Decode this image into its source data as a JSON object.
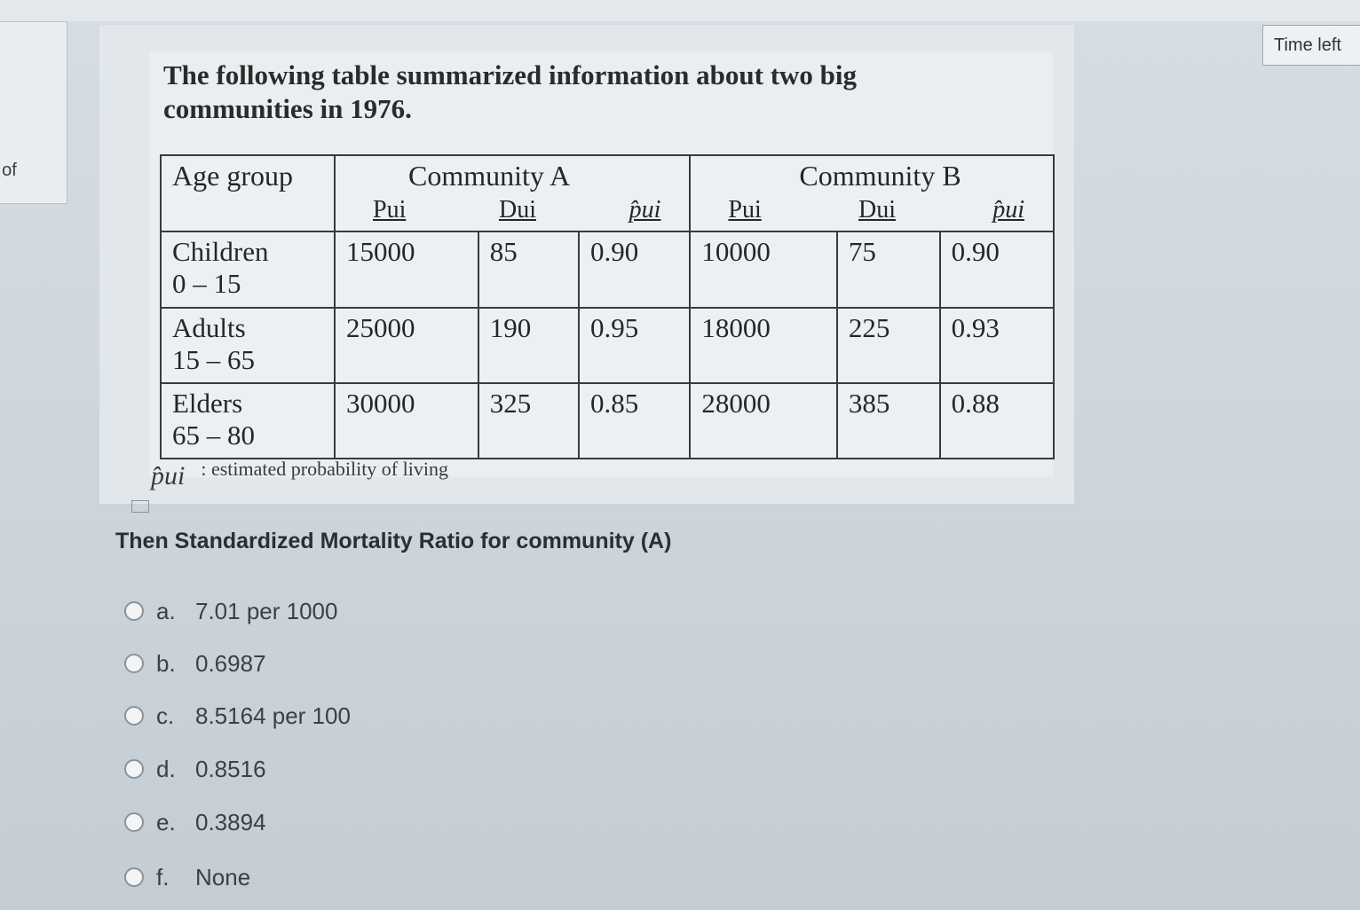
{
  "sidebar": {
    "label": "t of"
  },
  "timer": {
    "label": "Time left"
  },
  "question": {
    "intro": "The following table summarized information about two big communities in 1976.",
    "table": {
      "header": {
        "age_group": "Age group",
        "community_a": "Community A",
        "community_b": "Community B",
        "p_label": "Pui",
        "d_label": "Dui",
        "phat_label": "p̂ui"
      },
      "rows": [
        {
          "group": "Children",
          "range": "0 – 15",
          "a_p": "15000",
          "a_d": "85",
          "a_phat": "0.90",
          "b_p": "10000",
          "b_d": "75",
          "b_phat": "0.90"
        },
        {
          "group": "Adults",
          "range": "15 – 65",
          "a_p": "25000",
          "a_d": "190",
          "a_phat": "0.95",
          "b_p": "18000",
          "b_d": "225",
          "b_phat": "0.93"
        },
        {
          "group": "Elders",
          "range": "65 – 80",
          "a_p": "30000",
          "a_d": "325",
          "a_phat": "0.85",
          "b_p": "28000",
          "b_d": "385",
          "b_phat": "0.88"
        }
      ]
    },
    "note_symbol": "p̂ui",
    "note_text": ": estimated probability of living",
    "prompt": "Then Standardized Mortality Ratio for community (A)",
    "options": [
      {
        "letter": "a.",
        "text": "7.01 per 1000"
      },
      {
        "letter": "b.",
        "text": "0.6987"
      },
      {
        "letter": "c.",
        "text": "8.5164 per 100"
      },
      {
        "letter": "d.",
        "text": "0.8516"
      },
      {
        "letter": "e.",
        "text": "0.3894"
      },
      {
        "letter": "f.",
        "text": "None"
      }
    ]
  }
}
